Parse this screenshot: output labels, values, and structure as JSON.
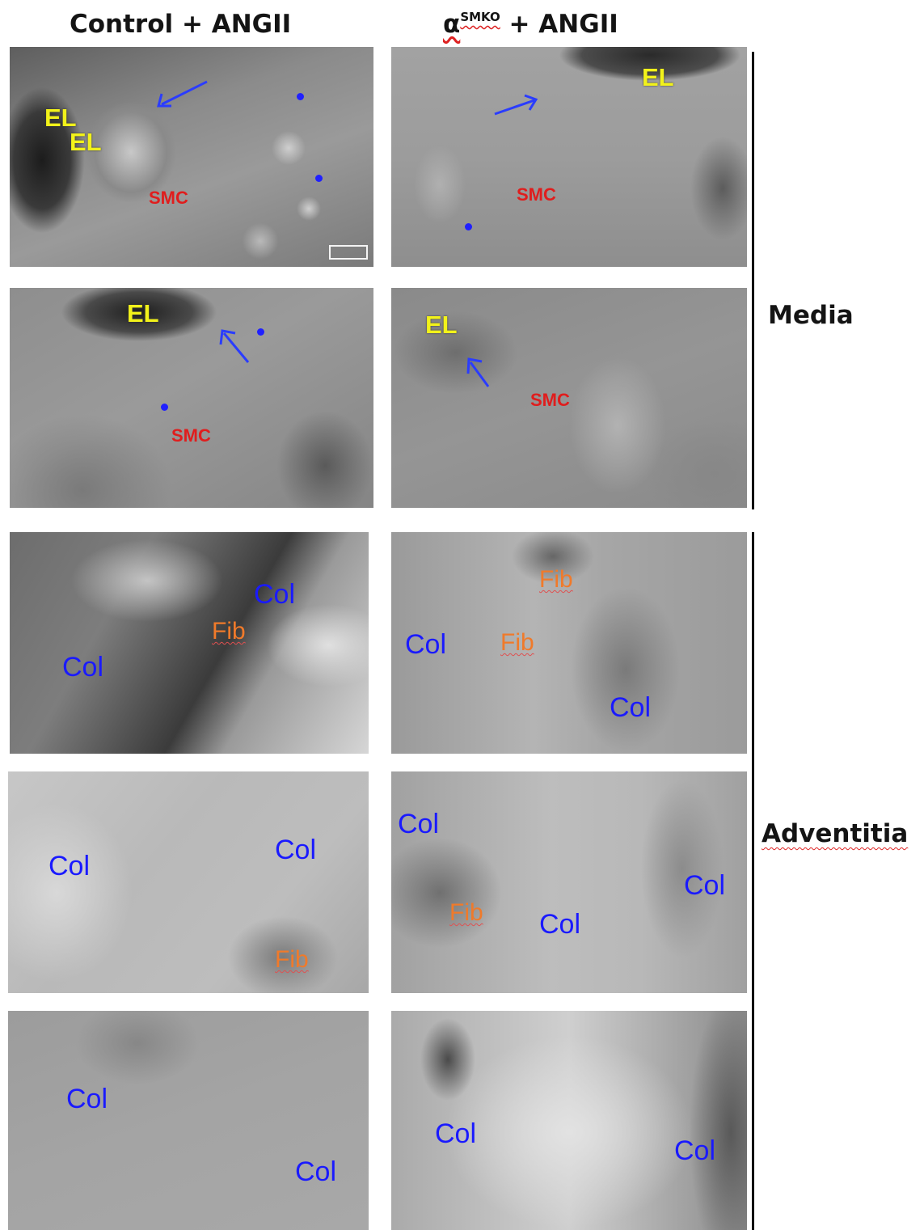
{
  "columns": {
    "left_header": "Control + ANGII",
    "right_header_prefix": "α",
    "right_header_sub": "SMKO",
    "right_header_suffix": " + ANGII"
  },
  "row_labels": {
    "media": "Media",
    "adventitia": "Adventitia"
  },
  "labels": {
    "el": "EL",
    "smc": "SMC",
    "col": "Col",
    "fib": "Fib"
  },
  "colors": {
    "el": "#f2f21a",
    "smc": "#e01d1d",
    "col": "#1a1aff",
    "fib": "#f07a2a",
    "arrow": "#2a3cff"
  }
}
